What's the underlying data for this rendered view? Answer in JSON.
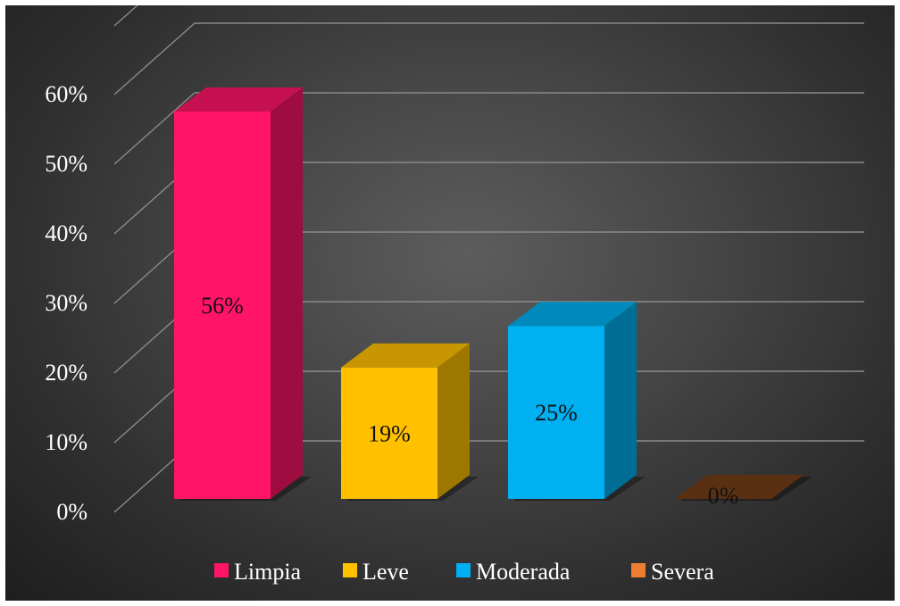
{
  "chart_data": {
    "type": "bar",
    "subtype": "3d-column",
    "categories": [
      "Limpia",
      "Leve",
      "Moderada",
      "Severa"
    ],
    "values": [
      56,
      19,
      25,
      0
    ],
    "data_labels": [
      "56%",
      "19%",
      "25%",
      "0%"
    ],
    "y_tick_labels": [
      "0%",
      "10%",
      "20%",
      "30%",
      "40%",
      "50%",
      "60%"
    ],
    "ylim": [
      0,
      60
    ],
    "grid": true,
    "legend_position": "bottom",
    "title": "",
    "xlabel": "",
    "ylabel": "",
    "colors": {
      "Limpia": "#ff1467",
      "Leve": "#ffc000",
      "Moderada": "#00b0f0",
      "Severa": "#ed7d31"
    },
    "background": "#3a3a3a"
  }
}
